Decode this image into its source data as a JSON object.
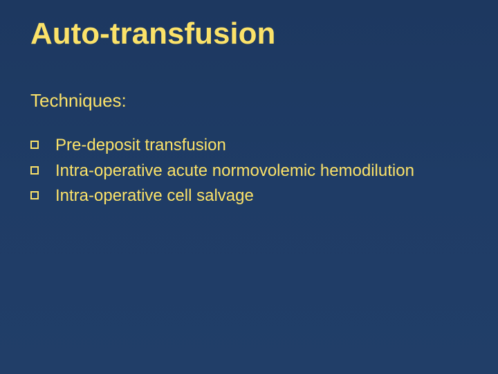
{
  "slide": {
    "background_color": "#1f3a62",
    "text_color": "#fbe269",
    "title": "Auto-transfusion",
    "title_fontsize": 44,
    "title_fontweight": "bold",
    "subtitle": "Techniques:",
    "subtitle_fontsize": 26,
    "bullet_marker": "square-outline",
    "bullet_fontsize": 24,
    "bullets": [
      {
        "text": "Pre-deposit transfusion"
      },
      {
        "text": "Intra-operative acute normovolemic hemodilution"
      },
      {
        "text": "Intra-operative cell salvage"
      }
    ]
  }
}
